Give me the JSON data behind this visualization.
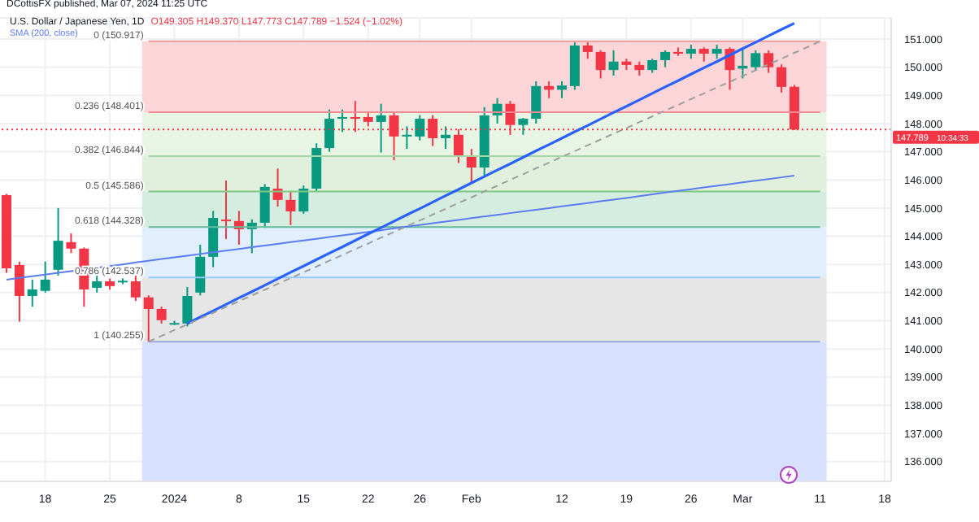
{
  "chart_data": {
    "type": "candlestick",
    "title": "U.S. Dollar / Japanese Yen, 1D",
    "subtitle": "O149.305 H149.370 L147.773 C147.789 −1.524 (−1.02%)",
    "annotations": [
      "DCottisFX published, Mar 07, 2024 11:25 UTC",
      "10:34:33"
    ],
    "categories": [
      null,
      null,
      null,
      "18",
      null,
      null,
      null,
      null,
      "25",
      null,
      null,
      null,
      null,
      "2024",
      null,
      null,
      null,
      null,
      "8",
      null,
      null,
      null,
      null,
      "15",
      null,
      null,
      null,
      null,
      "22",
      null,
      null,
      null,
      "26",
      null,
      null,
      null,
      "Feb",
      null,
      null,
      null,
      null,
      null,
      null,
      "12",
      null,
      null,
      null,
      null,
      "19",
      null,
      null,
      null,
      null,
      "26",
      null,
      null,
      null,
      "Mar",
      null,
      null,
      null,
      null,
      null,
      "11",
      null,
      null,
      null,
      null,
      "18"
    ],
    "ohlc": [
      [
        145.46,
        145.5,
        142.7,
        142.86
      ],
      [
        142.98,
        143.1,
        140.97,
        141.88
      ],
      [
        141.88,
        142.46,
        141.5,
        142.11
      ],
      [
        142.06,
        143.1,
        142.0,
        142.46
      ],
      [
        142.81,
        145.0,
        142.6,
        143.84
      ],
      [
        143.79,
        144.1,
        143.4,
        143.56
      ],
      [
        143.56,
        143.6,
        141.5,
        142.11
      ],
      [
        142.17,
        142.7,
        142.0,
        142.4
      ],
      [
        142.4,
        142.5,
        142.1,
        142.23
      ],
      [
        142.4,
        142.5,
        142.3,
        142.42
      ],
      [
        142.4,
        142.6,
        141.7,
        141.83
      ],
      [
        141.83,
        141.9,
        140.255,
        141.42
      ],
      [
        141.42,
        141.5,
        140.9,
        141.02
      ],
      [
        140.9,
        141.0,
        140.85,
        140.92
      ],
      [
        140.9,
        142.2,
        140.8,
        141.88
      ],
      [
        142.0,
        143.7,
        141.9,
        143.27
      ],
      [
        143.27,
        144.9,
        142.9,
        144.65
      ],
      [
        144.59,
        145.98,
        143.9,
        144.54
      ],
      [
        144.54,
        144.9,
        143.7,
        144.25
      ],
      [
        144.25,
        144.6,
        143.4,
        144.48
      ],
      [
        144.48,
        145.85,
        144.3,
        145.75
      ],
      [
        145.69,
        146.4,
        145.05,
        145.29
      ],
      [
        145.29,
        145.6,
        144.4,
        144.88
      ],
      [
        144.88,
        145.8,
        144.8,
        145.69
      ],
      [
        145.69,
        147.3,
        145.6,
        147.13
      ],
      [
        147.13,
        148.5,
        147.0,
        148.17
      ],
      [
        148.17,
        148.5,
        147.7,
        148.23
      ],
      [
        148.23,
        148.8,
        147.7,
        148.17
      ],
      [
        148.23,
        148.4,
        147.9,
        148.06
      ],
      [
        148.06,
        148.7,
        146.97,
        148.29
      ],
      [
        148.29,
        148.4,
        146.7,
        147.54
      ],
      [
        147.54,
        147.9,
        147.1,
        147.6
      ],
      [
        147.54,
        148.3,
        147.4,
        148.17
      ],
      [
        148.17,
        148.3,
        147.2,
        147.48
      ],
      [
        147.48,
        147.9,
        147.1,
        147.6
      ],
      [
        147.6,
        147.8,
        146.6,
        146.85
      ],
      [
        146.85,
        147.1,
        145.9,
        146.44
      ],
      [
        146.44,
        148.58,
        146.15,
        148.29
      ],
      [
        148.29,
        148.9,
        148.0,
        148.7
      ],
      [
        148.7,
        148.8,
        147.6,
        147.95
      ],
      [
        147.95,
        148.2,
        147.6,
        148.17
      ],
      [
        148.17,
        149.5,
        148.0,
        149.33
      ],
      [
        149.33,
        149.5,
        148.9,
        149.2
      ],
      [
        149.2,
        149.5,
        148.9,
        149.35
      ],
      [
        149.33,
        150.88,
        149.2,
        150.77
      ],
      [
        150.77,
        150.88,
        150.3,
        150.54
      ],
      [
        150.54,
        150.6,
        149.6,
        149.9
      ],
      [
        149.9,
        150.6,
        149.7,
        150.2
      ],
      [
        150.2,
        150.3,
        149.9,
        150.08
      ],
      [
        150.08,
        150.2,
        149.7,
        149.9
      ],
      [
        149.9,
        150.3,
        149.8,
        150.25
      ],
      [
        150.25,
        150.6,
        150.0,
        150.54
      ],
      [
        150.54,
        150.7,
        150.4,
        150.48
      ],
      [
        150.48,
        150.8,
        150.3,
        150.65
      ],
      [
        150.65,
        150.7,
        150.2,
        150.48
      ],
      [
        150.48,
        150.8,
        150.3,
        150.65
      ],
      [
        150.65,
        150.7,
        149.2,
        149.9
      ],
      [
        149.95,
        150.65,
        149.6,
        150.05
      ],
      [
        150.0,
        150.6,
        149.9,
        150.5
      ],
      [
        150.5,
        150.6,
        149.8,
        150.0
      ],
      [
        150.0,
        150.1,
        149.1,
        149.3
      ],
      [
        149.305,
        149.37,
        147.773,
        147.789
      ],
      null,
      null,
      null,
      null,
      null,
      null,
      null
    ],
    "colors": [
      "#f23645",
      "#f23645",
      "#089981",
      "#089981",
      "#089981",
      "#f23645",
      "#f23645",
      "#089981",
      "#f23645",
      "#089981",
      "#f23645",
      "#f23645",
      "#f23645",
      "#089981",
      "#089981",
      "#089981",
      "#089981",
      "#f23645",
      "#f23645",
      "#089981",
      "#089981",
      "#f23645",
      "#f23645",
      "#089981",
      "#089981",
      "#089981",
      "#089981",
      "#f23645",
      "#f23645",
      "#089981",
      "#f23645",
      "#089981",
      "#089981",
      "#f23645",
      "#089981",
      "#f23645",
      "#f23645",
      "#089981",
      "#089981",
      "#f23645",
      "#089981",
      "#089981",
      "#f23645",
      "#089981",
      "#089981",
      "#f23645",
      "#f23645",
      "#089981",
      "#f23645",
      "#f23645",
      "#089981",
      "#089981",
      "#f23645",
      "#089981",
      "#f23645",
      "#089981",
      "#f23645",
      "#089981",
      "#089981",
      "#f23645",
      "#f23645",
      "#f23645",
      null,
      null,
      null,
      null,
      null,
      null,
      null
    ],
    "series": [
      {
        "name": "SMA (200, close)",
        "type": "line",
        "color": "#5b7cf0",
        "values": [
          142.46,
          142.52,
          142.58,
          142.64,
          142.7,
          142.76,
          142.82,
          142.88,
          142.94,
          143.0,
          143.07,
          143.13,
          143.19,
          143.25,
          143.31,
          143.37,
          143.43,
          143.49,
          143.55,
          143.61,
          143.67,
          143.73,
          143.79,
          143.85,
          143.91,
          143.97,
          144.03,
          144.09,
          144.15,
          144.21,
          144.28,
          144.34,
          144.4,
          144.46,
          144.52,
          144.58,
          144.64,
          144.7,
          144.76,
          144.82,
          144.88,
          144.94,
          145.0,
          145.06,
          145.12,
          145.18,
          145.24,
          145.3,
          145.36,
          145.42,
          145.49,
          145.55,
          145.61,
          145.67,
          145.73,
          145.79,
          145.85,
          145.91,
          145.97,
          146.03,
          146.09,
          146.15,
          null,
          null,
          null,
          null,
          null,
          null,
          null
        ]
      },
      {
        "type": "line",
        "color": "#2962ff",
        "values": [
          null,
          null,
          null,
          null,
          null,
          null,
          null,
          null,
          null,
          null,
          null,
          null,
          null,
          null,
          140.9,
          141.13,
          141.35,
          141.58,
          141.81,
          142.03,
          142.26,
          142.49,
          142.72,
          142.94,
          143.17,
          143.4,
          143.62,
          143.85,
          144.08,
          144.3,
          144.53,
          144.76,
          144.98,
          145.21,
          145.44,
          145.66,
          145.89,
          146.12,
          146.35,
          146.57,
          146.8,
          147.03,
          147.25,
          147.48,
          147.71,
          147.93,
          148.16,
          148.39,
          148.61,
          148.84,
          149.07,
          149.3,
          149.52,
          149.75,
          149.98,
          150.2,
          150.43,
          150.66,
          150.88,
          151.11,
          151.34,
          151.56,
          null,
          null,
          null,
          null,
          null,
          null,
          null
        ]
      },
      {
        "type": "line",
        "color": "#9e9e9e",
        "line_style": "dashed",
        "values": [
          null,
          null,
          null,
          null,
          null,
          null,
          null,
          null,
          null,
          null,
          null,
          140.26,
          140.46,
          140.67,
          140.87,
          141.08,
          141.28,
          141.49,
          141.69,
          141.9,
          142.1,
          142.31,
          142.51,
          142.72,
          142.92,
          143.13,
          143.33,
          143.54,
          143.74,
          143.95,
          144.15,
          144.36,
          144.56,
          144.77,
          144.97,
          145.18,
          145.38,
          145.59,
          145.79,
          146.0,
          146.2,
          146.41,
          146.61,
          146.82,
          147.02,
          147.23,
          147.43,
          147.64,
          147.84,
          148.05,
          148.25,
          148.46,
          148.66,
          148.87,
          149.07,
          149.28,
          149.48,
          149.69,
          149.89,
          150.1,
          150.3,
          150.51,
          150.71,
          150.92,
          null,
          null,
          null,
          null,
          null
        ]
      }
    ],
    "ylim": [
      135.3,
      151.75
    ],
    "yticks": [
      {
        "value": 151,
        "label": "151.000"
      },
      {
        "value": 150,
        "label": "150.000"
      },
      {
        "value": 149,
        "label": "149.000"
      },
      {
        "value": 148,
        "label": "148.000"
      },
      {
        "value": 147,
        "label": "147.000"
      },
      {
        "value": 146,
        "label": "146.000"
      },
      {
        "value": 145,
        "label": "145.000"
      },
      {
        "value": 144,
        "label": "144.000"
      },
      {
        "value": 143,
        "label": "143.000"
      },
      {
        "value": 142,
        "label": "142.000"
      },
      {
        "value": 141,
        "label": "141.000"
      },
      {
        "value": 140,
        "label": "140.000"
      },
      {
        "value": 139,
        "label": "139.000"
      },
      {
        "value": 138,
        "label": "138.000"
      },
      {
        "value": 137,
        "label": "137.000"
      },
      {
        "value": 136,
        "label": "136.000"
      }
    ],
    "ref_lines": [
      {
        "axis": "y",
        "value": 150.917,
        "label": "0 (150.917)",
        "color": "#ef9a9a"
      },
      {
        "axis": "y",
        "value": 148.401,
        "label": "0.236 (148.401)",
        "color": "#f28b93"
      },
      {
        "axis": "y",
        "value": 146.844,
        "label": "0.382 (146.844)",
        "color": "#a5d6a7"
      },
      {
        "axis": "y",
        "value": 145.586,
        "label": "0.5 (145.586)",
        "color": "#81c784"
      },
      {
        "axis": "y",
        "value": 144.328,
        "label": "0.618 (144.328)",
        "color": "#66bb9a"
      },
      {
        "axis": "y",
        "value": 142.537,
        "label": "0.786 (142.537)",
        "color": "#90caf9"
      },
      {
        "axis": "y",
        "value": 140.255,
        "label": "1 (140.255)",
        "color": "#9fa8da"
      },
      {
        "axis": "y",
        "value": 147.789,
        "label": "147.789",
        "color": "#f23645",
        "line_style": "dotted"
      }
    ],
    "bands": [
      {
        "axis": "y",
        "from": 148.401,
        "to": 150.917,
        "color": "#fbd5d8"
      },
      {
        "axis": "y",
        "from": 146.844,
        "to": 148.401,
        "color": "#e8f5e4"
      },
      {
        "axis": "y",
        "from": 145.586,
        "to": 146.844,
        "color": "#e0f0dc"
      },
      {
        "axis": "y",
        "from": 144.328,
        "to": 145.586,
        "color": "#d5ece0"
      },
      {
        "axis": "y",
        "from": 142.537,
        "to": 144.328,
        "color": "#e1eefc"
      },
      {
        "axis": "y",
        "from": 140.255,
        "to": 142.537,
        "color": "#e6e6e6"
      },
      {
        "axis": "y",
        "from": 135.3,
        "to": 140.255,
        "color": "#d7e0fc"
      }
    ],
    "grid": true,
    "legend": "top left"
  }
}
